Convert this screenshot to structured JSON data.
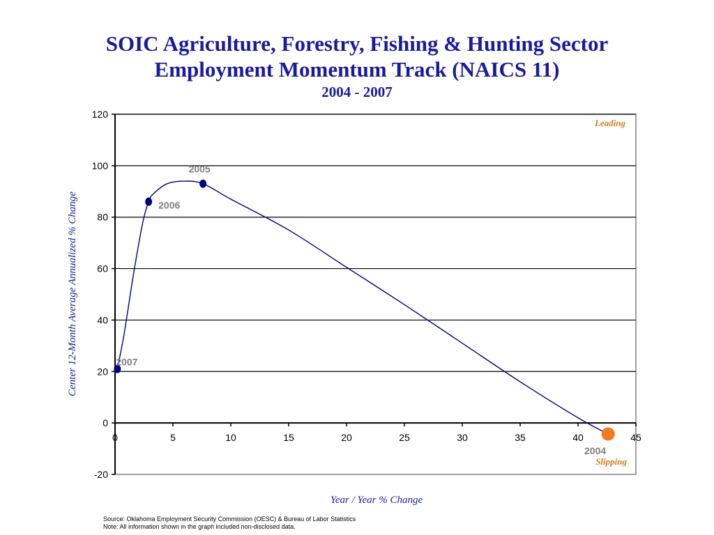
{
  "title": "SOIC Agriculture, Forestry, Fishing & Hunting Sector",
  "title_line2": "Employment Momentum Track (NAICS 11)",
  "subtitle": "2004 - 2007",
  "footnotes": {
    "source": "Source:  Oklahoma Employment Security Commission (OESC) & Bureau of Labor Statistics",
    "note": "Note: All information shown in the graph included non-disclosed data."
  },
  "chart_data": {
    "type": "scatter",
    "title": "SOIC Agriculture, Forestry, Fishing & Hunting Sector Employment Momentum Track (NAICS 11)",
    "subtitle": "2004 - 2007",
    "xlabel": "Year / Year % Change",
    "ylabel": "Center 12-Month Average Annualized % Change",
    "xlim": [
      0,
      45
    ],
    "ylim": [
      -20,
      120
    ],
    "x_ticks": [
      0,
      5,
      10,
      15,
      20,
      25,
      30,
      35,
      40,
      45
    ],
    "y_ticks": [
      -20,
      0,
      20,
      40,
      60,
      80,
      100,
      120
    ],
    "grid": "horizontal",
    "quadrant_labels": {
      "top_right": "Leading",
      "bottom_right": "Slipping"
    },
    "points": [
      {
        "label": "2004",
        "x": 42.6,
        "y": -4.3,
        "color": "#f47920"
      },
      {
        "label": "2005",
        "x": 7.6,
        "y": 93
      },
      {
        "label": "2006",
        "x": 2.9,
        "y": 86
      },
      {
        "label": "2007",
        "x": 0.2,
        "y": 21
      }
    ],
    "curve": [
      [
        42.6,
        -4.3
      ],
      [
        40,
        2
      ],
      [
        35,
        16
      ],
      [
        30,
        31
      ],
      [
        25,
        46
      ],
      [
        20,
        60.5
      ],
      [
        15,
        75
      ],
      [
        10,
        87
      ],
      [
        7.6,
        93
      ],
      [
        6,
        94
      ],
      [
        4.5,
        93
      ],
      [
        3.3,
        89
      ],
      [
        2.9,
        86
      ],
      [
        2.4,
        78
      ],
      [
        1.6,
        58
      ],
      [
        0.8,
        35
      ],
      [
        0.2,
        21
      ]
    ],
    "colors": {
      "line": "#000080",
      "marker": "#000080",
      "latest_marker": "#f47920"
    }
  }
}
